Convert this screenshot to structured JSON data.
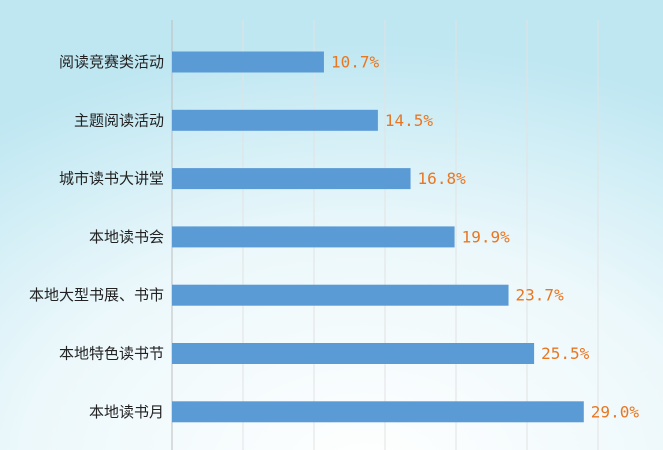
{
  "chart_data": {
    "type": "bar",
    "orientation": "horizontal",
    "categories": [
      "阅读竞赛类活动",
      "主题阅读活动",
      "城市读书大讲堂",
      "本地读书会",
      "本地大型书展、书市",
      "本地特色读书节",
      "本地读书月"
    ],
    "values": [
      10.7,
      14.5,
      16.8,
      19.9,
      23.7,
      25.5,
      29.0
    ],
    "data_labels": [
      "10.7%",
      "14.5%",
      "16.8%",
      "19.9%",
      "23.7%",
      "25.5%",
      "29.0%"
    ],
    "title": "",
    "xlabel": "",
    "ylabel": "",
    "xlim": [
      0,
      35
    ],
    "grid": "vertical",
    "legend": "none",
    "colors": {
      "bar": "#5b9bd5",
      "data_label": "#e87722",
      "category_label": "#222222",
      "gridline": "#e2e2e2",
      "background_top": "#c3eaf4",
      "background_bottom": "#ffffff"
    }
  }
}
